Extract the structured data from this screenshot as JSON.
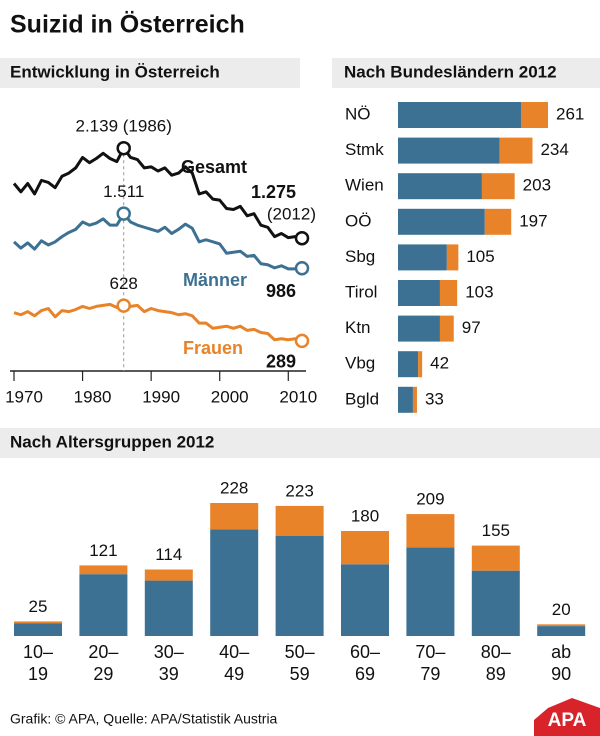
{
  "title": "Suizid in Österreich",
  "footer": "Grafik: © APA, Quelle: APA/Statistik Austria",
  "logo": "APA",
  "chart_data": [
    {
      "type": "line",
      "title": "Entwicklung in Österreich",
      "x": [
        1970,
        1971,
        1972,
        1973,
        1974,
        1975,
        1976,
        1977,
        1978,
        1979,
        1980,
        1981,
        1982,
        1983,
        1984,
        1985,
        1986,
        1987,
        1988,
        1989,
        1990,
        1991,
        1992,
        1993,
        1994,
        1995,
        1996,
        1997,
        1998,
        1999,
        2000,
        2001,
        2002,
        2003,
        2004,
        2005,
        2006,
        2007,
        2008,
        2009,
        2010,
        2011,
        2012
      ],
      "xlim": [
        1970,
        2012
      ],
      "xticks": [
        1970,
        1980,
        1990,
        2000,
        2010
      ],
      "ylim": [
        0,
        2400
      ],
      "annotations": [
        "(2012)"
      ],
      "series": [
        {
          "name": "Gesamt",
          "color": "#111111",
          "values": [
            1800,
            1720,
            1800,
            1700,
            1830,
            1810,
            1760,
            1870,
            1900,
            1950,
            2050,
            2000,
            2040,
            2090,
            2040,
            2010,
            2139,
            2050,
            2030,
            1950,
            1960,
            1920,
            1950,
            1880,
            1900,
            1960,
            1900,
            1700,
            1720,
            1650,
            1640,
            1560,
            1550,
            1580,
            1490,
            1510,
            1400,
            1380,
            1290,
            1320,
            1280,
            1290,
            1275
          ],
          "value_labels": [
            null,
            null,
            null,
            null,
            null,
            null,
            null,
            null,
            null,
            null,
            null,
            null,
            null,
            null,
            null,
            null,
            "2.139 (1986)",
            null,
            null,
            null,
            null,
            null,
            null,
            null,
            null,
            null,
            null,
            null,
            null,
            null,
            null,
            null,
            null,
            null,
            null,
            null,
            null,
            null,
            null,
            null,
            null,
            null,
            "1.275"
          ]
        },
        {
          "name": "Männer",
          "color": "#3d7193",
          "values": [
            1240,
            1180,
            1230,
            1170,
            1250,
            1210,
            1240,
            1290,
            1330,
            1360,
            1430,
            1400,
            1420,
            1460,
            1400,
            1400,
            1511,
            1430,
            1400,
            1380,
            1360,
            1340,
            1380,
            1320,
            1360,
            1410,
            1370,
            1240,
            1260,
            1240,
            1220,
            1130,
            1140,
            1150,
            1100,
            1110,
            1030,
            1020,
            990,
            1010,
            980,
            980,
            986
          ],
          "value_labels": [
            null,
            null,
            null,
            null,
            null,
            null,
            null,
            null,
            null,
            null,
            null,
            null,
            null,
            null,
            null,
            null,
            "1.511",
            null,
            null,
            null,
            null,
            null,
            null,
            null,
            null,
            null,
            null,
            null,
            null,
            null,
            null,
            null,
            null,
            null,
            null,
            null,
            null,
            null,
            null,
            null,
            null,
            null,
            "986"
          ]
        },
        {
          "name": "Frauen",
          "color": "#e8832a",
          "values": [
            560,
            540,
            570,
            530,
            580,
            600,
            520,
            580,
            570,
            590,
            620,
            600,
            620,
            630,
            640,
            610,
            628,
            620,
            630,
            570,
            600,
            580,
            570,
            560,
            540,
            550,
            530,
            460,
            460,
            410,
            420,
            430,
            410,
            430,
            390,
            400,
            370,
            360,
            300,
            310,
            300,
            310,
            289
          ],
          "value_labels": [
            null,
            null,
            null,
            null,
            null,
            null,
            null,
            null,
            null,
            null,
            null,
            null,
            null,
            null,
            null,
            null,
            "628",
            null,
            null,
            null,
            null,
            null,
            null,
            null,
            null,
            null,
            null,
            null,
            null,
            null,
            null,
            null,
            null,
            null,
            null,
            null,
            null,
            null,
            null,
            null,
            null,
            null,
            "289"
          ]
        }
      ]
    },
    {
      "type": "barh",
      "title": "Nach Bundesländern 2012",
      "stacked": true,
      "categories": [
        "NÖ",
        "Stmk",
        "Wien",
        "OÖ",
        "Sbg",
        "Tirol",
        "Ktn",
        "Vbg",
        "Bgld"
      ],
      "totals": [
        261,
        234,
        203,
        197,
        105,
        103,
        97,
        42,
        33
      ],
      "series": [
        {
          "color": "#3d7193",
          "values": [
            214,
            177,
            146,
            151,
            85,
            73,
            73,
            35,
            26
          ]
        },
        {
          "color": "#e8832a",
          "values": [
            47,
            57,
            57,
            46,
            20,
            30,
            24,
            7,
            7
          ]
        }
      ]
    },
    {
      "type": "bar",
      "title": "Nach Altersgruppen 2012",
      "stacked": true,
      "categories": [
        [
          "10–",
          "19"
        ],
        [
          "20–",
          "29"
        ],
        [
          "30–",
          "39"
        ],
        [
          "40–",
          "49"
        ],
        [
          "50–",
          "59"
        ],
        [
          "60–",
          "69"
        ],
        [
          "70–",
          "79"
        ],
        [
          "80–",
          "89"
        ],
        [
          "ab",
          "90"
        ]
      ],
      "totals": [
        25,
        121,
        114,
        228,
        223,
        180,
        209,
        155,
        20
      ],
      "series": [
        {
          "color": "#3d7193",
          "values": [
            22,
            106,
            95,
            183,
            172,
            123,
            152,
            112,
            17
          ]
        },
        {
          "color": "#e8832a",
          "values": [
            3,
            15,
            19,
            45,
            51,
            57,
            57,
            43,
            3
          ]
        }
      ]
    }
  ]
}
